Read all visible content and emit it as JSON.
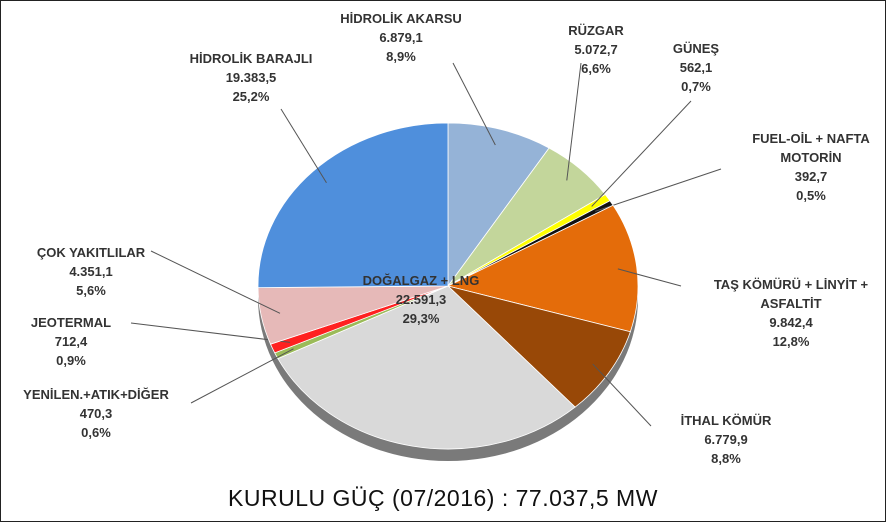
{
  "chart_data": {
    "type": "pie",
    "title": "KURULU GÜÇ (07/2016) : 77.037,5 MW",
    "categories": [
      "HİDROLİK AKARSU",
      "RÜZGAR",
      "GÜNEŞ",
      "FUEL-OİL + NAFTA MOTORİN",
      "TAŞ KÖMÜRÜ + LİNYİT + ASFALTİT",
      "İTHAL KÖMÜR",
      "DOĞALGAZ + LNG",
      "YENİLEN.+ATIK+DİĞER",
      "JEOTERMAL",
      "ÇOK YAKITLILAR",
      "HİDROLİK BARAJLI"
    ],
    "values": [
      6879.1,
      5072.7,
      562.1,
      392.7,
      9842.4,
      6779.9,
      22591.3,
      470.3,
      712.4,
      4351.1,
      19383.5
    ],
    "value_labels": [
      "6.879,1",
      "5.072,7",
      "562,1",
      "392,7",
      "9.842,4",
      "6.779,9",
      "22.591,3",
      "470,3",
      "712,4",
      "4.351,1",
      "19.383,5"
    ],
    "percent_labels": [
      "8,9%",
      "6,6%",
      "0,7%",
      "0,5%",
      "12,8%",
      "8,8%",
      "29,3%",
      "0,6%",
      "0,9%",
      "5,6%",
      "25,2%"
    ],
    "colors": [
      "#95b3d7",
      "#c3d69b",
      "#ffff00",
      "#111111",
      "#e46c0a",
      "#984807",
      "#d9d9d9",
      "#9bbb59",
      "#ff2020",
      "#e6b9b8",
      "#4f8fdc"
    ]
  }
}
